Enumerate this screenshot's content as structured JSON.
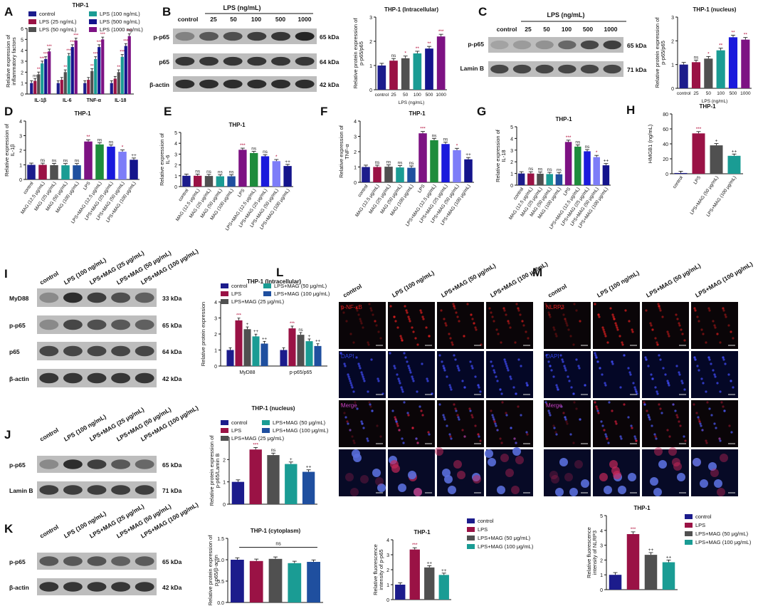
{
  "colors": {
    "control": "#1c1c8c",
    "wine": "#9a1245",
    "purple": "#7d1283",
    "gray": "#505050",
    "teal": "#1a9c94",
    "green": "#1e8c3c",
    "blue": "#1a1adc",
    "lightblue": "#7d7df8",
    "navy": "#14148c",
    "midblue": "#1f4f9f"
  },
  "panels": {
    "A": {
      "letter": "A",
      "title": "THP-1",
      "ylabel": "Relative expression of inflammatory factors",
      "legend": [
        "control",
        "LPS (25 ng/mL)",
        "LPS (50 ng/mL)",
        "LPS (100 ng/mL)",
        "LPS (500 ng/mL)",
        "LPS (1000 ng/mL)"
      ]
    },
    "B": {
      "letter": "B",
      "header": "LPS (ng/mL)",
      "lanes": [
        "control",
        "25",
        "50",
        "100",
        "500",
        "1000"
      ],
      "bands": [
        {
          "name": "p-p65",
          "kda": "65 kDa"
        },
        {
          "name": "p65",
          "kda": "64 kDa"
        },
        {
          "name": "β-actin",
          "kda": "42 kDa"
        }
      ]
    },
    "C": {
      "letter": "C",
      "header": "LPS (ng/mL)",
      "lanes": [
        "control",
        "25",
        "50",
        "100",
        "500",
        "1000"
      ],
      "bands": [
        {
          "name": "p-p65",
          "kda": "65 kDa"
        },
        {
          "name": "Lamin B",
          "kda": "71 kDa"
        }
      ]
    },
    "D": {
      "letter": "D"
    },
    "E": {
      "letter": "E"
    },
    "F": {
      "letter": "F"
    },
    "G": {
      "letter": "G"
    },
    "H": {
      "letter": "H"
    },
    "I": {
      "letter": "I",
      "lanes": [
        "control",
        "LPS (100 ng/mL)",
        "LPS+MAG (25 μg/mL)",
        "LPS+MAG (50 μg/mL)",
        "LPS+MAG (100 μg/mL)"
      ],
      "bands": [
        {
          "name": "MyD88",
          "kda": "33 kDa"
        },
        {
          "name": "p-p65",
          "kda": "65 kDa"
        },
        {
          "name": "p65",
          "kda": "64 kDa"
        },
        {
          "name": "β-actin",
          "kda": "42 kDa"
        }
      ]
    },
    "J": {
      "letter": "J",
      "lanes": [
        "control",
        "LPS (100 ng/mL)",
        "LPS+MAG (25 μg/mL)",
        "LPS+MAG (50 μg/mL)",
        "LPS+MAG (100 μg/mL)"
      ],
      "bands": [
        {
          "name": "p-p65",
          "kda": "65 kDa"
        },
        {
          "name": "Lamin B",
          "kda": "71 kDa"
        }
      ]
    },
    "K": {
      "letter": "K",
      "lanes": [
        "control",
        "LPS (100 ng/mL)",
        "LPS+MAG (25 μg/mL)",
        "LPS+MAG (50 μg/mL)",
        "LPS+MAG (100 μg/mL)"
      ],
      "bands": [
        {
          "name": "p-p65",
          "kda": "65 kDa"
        },
        {
          "name": "β-actin",
          "kda": "42 kDa"
        }
      ]
    },
    "L": {
      "letter": "L",
      "lanes": [
        "control",
        "LPS (100 ng/mL)",
        "LPS+MAG (50 μg/mL)",
        "LPS+MAG (100 μg/mL)"
      ],
      "rows": [
        "p-NF-κB",
        "DAPI",
        "Merge",
        ""
      ]
    },
    "M": {
      "letter": "M",
      "lanes": [
        "control",
        "LPS (100 ng/mL)",
        "LPS+MAG (50 μg/mL)",
        "LPS+MAG (100 μg/mL)"
      ],
      "rows": [
        "NLRP3",
        "DAPI",
        "Merge",
        ""
      ]
    }
  },
  "chart_data": [
    {
      "id": "A",
      "type": "bar",
      "title": "THP-1",
      "ylabel": "Relative expression of inflammatory factors",
      "categories": [
        "IL-1β",
        "IL-6",
        "TNF-α",
        "IL-18"
      ],
      "ylim": [
        0,
        6
      ],
      "yticks": [
        0,
        1,
        2,
        3,
        4,
        5,
        6
      ],
      "series": [
        {
          "name": "control",
          "color": "#1c1c8c",
          "values": [
            1,
            1,
            1,
            1
          ],
          "sig": [
            "",
            "",
            "",
            ""
          ]
        },
        {
          "name": "LPS (25 ng/mL)",
          "color": "#9a1245",
          "values": [
            1.2,
            1.3,
            1.3,
            1.4
          ],
          "sig": [
            "ns",
            "",
            "",
            ""
          ]
        },
        {
          "name": "LPS (50 ng/mL)",
          "color": "#505050",
          "values": [
            1.8,
            2.0,
            2.1,
            2.0
          ],
          "sig": [
            "**",
            "**",
            "**",
            "**"
          ]
        },
        {
          "name": "LPS (100 ng/mL)",
          "color": "#1a9c94",
          "values": [
            2.8,
            3.5,
            3.2,
            3.4
          ],
          "sig": [
            "***",
            "***",
            "***",
            "***"
          ]
        },
        {
          "name": "LPS (500 ng/mL)",
          "color": "#14148c",
          "values": [
            3.2,
            4.3,
            4.3,
            4.4
          ],
          "sig": [
            "***",
            "***",
            "***",
            "***"
          ]
        },
        {
          "name": "LPS (1000 ng/mL)",
          "color": "#7d1283",
          "values": [
            3.9,
            4.9,
            5.0,
            5.3
          ],
          "sig": [
            "***",
            "***",
            "***",
            "***"
          ]
        }
      ]
    },
    {
      "id": "B",
      "type": "bar",
      "title": "THP-1 (Intracellular)",
      "ylabel": "Relative protein expression of p-p65/p65",
      "xlabel": "LPS (ng/mL)",
      "categories": [
        "control",
        "25",
        "50",
        "100",
        "500",
        "1000"
      ],
      "ylim": [
        0,
        3
      ],
      "yticks": [
        0,
        1,
        2,
        3
      ],
      "values": [
        1.0,
        1.2,
        1.3,
        1.5,
        1.7,
        2.2
      ],
      "sig": [
        "",
        "ns",
        "*",
        "**",
        "**",
        "***"
      ],
      "colors": [
        "#1c1c8c",
        "#9a1245",
        "#505050",
        "#1a9c94",
        "#14148c",
        "#7d1283"
      ]
    },
    {
      "id": "C",
      "type": "bar",
      "title": "THP-1 (nucleus)",
      "ylabel": "Relative protein expression of p-p65/p65",
      "xlabel": "LPS (ng/mL)",
      "categories": [
        "control",
        "25",
        "50",
        "100",
        "500",
        "1000"
      ],
      "ylim": [
        0,
        3
      ],
      "yticks": [
        0,
        1,
        2,
        3
      ],
      "values": [
        1.0,
        1.1,
        1.25,
        1.6,
        2.15,
        2.05
      ],
      "sig": [
        "",
        "ns",
        "*",
        "**",
        "**",
        "**"
      ],
      "colors": [
        "#1c1c8c",
        "#9a1245",
        "#505050",
        "#1a9c94",
        "#1a1adc",
        "#7d1283"
      ]
    },
    {
      "id": "D",
      "type": "bar",
      "title": "THP-1",
      "ylabel": "Relative expression of IL-1β",
      "categories": [
        "control",
        "MAG (12.5 μg/mL)",
        "MAG (25 μg/mL)",
        "MAG (50 μg/mL)",
        "MAG (100 μg/mL)",
        "LPS",
        "LPS+MAG (12.5 μg/mL)",
        "LPS+MAG (25 μg/mL)",
        "LPS+MAG (50 μg/mL)",
        "LPS+MAG (100 μg/mL)"
      ],
      "ylim": [
        0,
        4
      ],
      "yticks": [
        0,
        1,
        2,
        3,
        4
      ],
      "values": [
        1.0,
        1.0,
        0.98,
        0.97,
        0.97,
        2.6,
        2.4,
        2.25,
        1.9,
        1.35
      ],
      "sig": [
        "",
        "ns",
        "ns",
        "ns",
        "ns",
        "**",
        "ns",
        "ns",
        "*",
        "++"
      ],
      "colors": [
        "#1c1c8c",
        "#9a1245",
        "#505050",
        "#1a9c94",
        "#1f4f9f",
        "#7d1283",
        "#1e8c3c",
        "#1a1adc",
        "#7d7df8",
        "#14148c"
      ]
    },
    {
      "id": "E",
      "type": "bar",
      "title": "THP-1",
      "ylabel": "Relative expression of IL-6",
      "categories": [
        "control",
        "MAG (12.5 μg/mL)",
        "MAG (25 μg/mL)",
        "MAG (50 μg/mL)",
        "MAG (100 μg/mL)",
        "LPS",
        "LPS+MAG (12.5 μg/mL)",
        "LPS+MAG (25 μg/mL)",
        "LPS+MAG (50 μg/mL)",
        "LPS+MAG (100 μg/mL)"
      ],
      "ylim": [
        0,
        5
      ],
      "yticks": [
        0,
        1,
        2,
        3,
        4,
        5
      ],
      "values": [
        1.0,
        1.0,
        0.98,
        0.95,
        0.95,
        3.4,
        3.1,
        2.8,
        2.35,
        1.9
      ],
      "sig": [
        "",
        "ns",
        "ns",
        "ns",
        "ns",
        "***",
        "ns",
        "ns",
        "*",
        "++"
      ],
      "colors": [
        "#1c1c8c",
        "#9a1245",
        "#505050",
        "#1a9c94",
        "#1f4f9f",
        "#7d1283",
        "#1e8c3c",
        "#1a1adc",
        "#7d7df8",
        "#14148c"
      ]
    },
    {
      "id": "F",
      "type": "bar",
      "title": "THP-1",
      "ylabel": "Relative expression of TNF-α",
      "categories": [
        "control",
        "MAG (12.5 μg/mL)",
        "MAG (25 μg/mL)",
        "MAG (50 μg/mL)",
        "MAG (100 μg/mL)",
        "LPS",
        "LPS+MAG (12.5 μg/mL)",
        "LPS+MAG (25 μg/mL)",
        "LPS+MAG (50 μg/mL)",
        "LPS+MAG (100 μg/mL)"
      ],
      "ylim": [
        0,
        4
      ],
      "yticks": [
        0,
        1,
        2,
        3,
        4
      ],
      "values": [
        1.0,
        1.0,
        1.02,
        0.97,
        0.95,
        3.2,
        2.75,
        2.5,
        2.1,
        1.5
      ],
      "sig": [
        "",
        "ns",
        "ns",
        "ns",
        "ns",
        "***",
        "ns",
        "ns",
        "*",
        "++"
      ],
      "colors": [
        "#1c1c8c",
        "#9a1245",
        "#505050",
        "#1a9c94",
        "#1f4f9f",
        "#7d1283",
        "#1e8c3c",
        "#1a1adc",
        "#7d7df8",
        "#14148c"
      ]
    },
    {
      "id": "G",
      "type": "bar",
      "title": "THP-1",
      "ylabel": "Relative expression of IL-18",
      "categories": [
        "control",
        "MAG (12.5 μg/mL)",
        "MAG (25 μg/mL)",
        "MAG (50 μg/mL)",
        "MAG (100 μg/mL)",
        "LPS",
        "LPS+MAG (12.5 μg/mL)",
        "LPS+MAG (25 μg/mL)",
        "LPS+MAG (50 μg/mL)",
        "LPS+MAG (100 μg/mL)"
      ],
      "ylim": [
        0,
        5
      ],
      "yticks": [
        0,
        1,
        2,
        3,
        4,
        5
      ],
      "values": [
        1.0,
        1.0,
        0.98,
        0.95,
        0.93,
        3.7,
        3.3,
        2.9,
        2.4,
        1.7
      ],
      "sig": [
        "",
        "ns",
        "ns",
        "ns",
        "ns",
        "***",
        "ns",
        "ns",
        "*",
        "++"
      ],
      "colors": [
        "#1c1c8c",
        "#9a1245",
        "#505050",
        "#1a9c94",
        "#1f4f9f",
        "#7d1283",
        "#1e8c3c",
        "#1a1adc",
        "#7d7df8",
        "#14148c"
      ]
    },
    {
      "id": "H",
      "type": "bar",
      "title": "THP-1",
      "ylabel": "HMGB1 (ng/mL)",
      "categories": [
        "control",
        "LPS",
        "LPS+MAG (50 μg/mL)",
        "LPS+MAG (100 μg/mL)"
      ],
      "ylim": [
        0,
        80
      ],
      "yticks": [
        0,
        20,
        40,
        60,
        80
      ],
      "values": [
        1,
        54,
        38,
        24
      ],
      "sig": [
        "",
        "***",
        "+",
        "++"
      ],
      "colors": [
        "#1c1c8c",
        "#9a1245",
        "#505050",
        "#1a9c94"
      ]
    },
    {
      "id": "I",
      "type": "bar",
      "title": "THP-1 (Intracellular)",
      "ylabel": "Relative protein expression",
      "categories": [
        "MyD88",
        "p-p65/p65"
      ],
      "ylim": [
        0,
        4
      ],
      "yticks": [
        0,
        1,
        2,
        3,
        4
      ],
      "legend": [
        "control",
        "LPS",
        "LPS+MAG (25 μg/mL)",
        "LPS+MAG (50 μg/mL)",
        "LPS+MAG (100 μg/mL)"
      ],
      "series": [
        {
          "name": "control",
          "color": "#1c1c8c",
          "values": [
            1.0,
            1.0
          ],
          "sig": [
            "",
            ""
          ]
        },
        {
          "name": "LPS",
          "color": "#9a1245",
          "values": [
            2.85,
            2.35
          ],
          "sig": [
            "***",
            "***"
          ]
        },
        {
          "name": "LPS+MAG (25 μg/mL)",
          "color": "#505050",
          "values": [
            2.3,
            1.95
          ],
          "sig": [
            "+",
            "ns"
          ]
        },
        {
          "name": "LPS+MAG (50 μg/mL)",
          "color": "#1a9c94",
          "values": [
            1.85,
            1.55
          ],
          "sig": [
            "++",
            "+"
          ]
        },
        {
          "name": "LPS+MAG (100 μg/mL)",
          "color": "#1f4f9f",
          "values": [
            1.4,
            1.25
          ],
          "sig": [
            "++",
            "++"
          ]
        }
      ]
    },
    {
      "id": "J",
      "type": "bar",
      "title": "THP-1 (nucleus)",
      "ylabel": "Relative protein expression of p-p65/Lamin B",
      "categories": [
        "control",
        "LPS",
        "LPS+MAG (25 μg/mL)",
        "LPS+MAG (50 μg/mL)",
        "LPS+MAG (100 μg/mL)"
      ],
      "legend": [
        "control",
        "LPS",
        "LPS+MAG (25 μg/mL)",
        "LPS+MAG (50 μg/mL)",
        "LPS+MAG (100 μg/mL)"
      ],
      "ylim": [
        0,
        3
      ],
      "yticks": [
        0,
        1,
        2,
        3
      ],
      "values": [
        1.0,
        2.45,
        2.2,
        1.8,
        1.45
      ],
      "sig": [
        "",
        "***",
        "ns",
        "+",
        "++"
      ],
      "colors": [
        "#1c1c8c",
        "#9a1245",
        "#505050",
        "#1a9c94",
        "#1f4f9f"
      ]
    },
    {
      "id": "K",
      "type": "bar",
      "title": "THP-1 (cytoplasm)",
      "ylabel": "Relative protein expression of p-p65/β-actin",
      "categories": [
        "control",
        "LPS",
        "LPS+MAG (25 μg/mL)",
        "LPS+MAG (50 μg/mL)",
        "LPS+MAG (100 μg/mL)"
      ],
      "ylim": [
        0,
        1.5
      ],
      "yticks": [
        0.0,
        0.5,
        1.0,
        1.5
      ],
      "bracket": "ns",
      "values": [
        1.0,
        0.97,
        1.02,
        0.92,
        0.95
      ],
      "sig": [
        "",
        "",
        "",
        "",
        ""
      ],
      "colors": [
        "#1c1c8c",
        "#9a1245",
        "#505050",
        "#1a9c94",
        "#1f4f9f"
      ]
    },
    {
      "id": "L",
      "type": "bar",
      "title": "THP-1",
      "ylabel": "Relative fluorescence intensity of p-p65",
      "categories": [
        "control",
        "LPS",
        "LPS+MAG (50 μg/mL)",
        "LPS+MAG (100 μg/mL)"
      ],
      "legend": [
        "control",
        "LPS",
        "LPS+MAG (50 μg/mL)",
        "LPS+MAG (100 μg/mL)"
      ],
      "ylim": [
        0,
        4
      ],
      "yticks": [
        0,
        1,
        2,
        3,
        4
      ],
      "values": [
        1.0,
        3.35,
        2.15,
        1.65
      ],
      "sig": [
        "",
        "***",
        "++",
        "++"
      ],
      "colors": [
        "#1c1c8c",
        "#9a1245",
        "#505050",
        "#1a9c94"
      ]
    },
    {
      "id": "M",
      "type": "bar",
      "title": "THP-1",
      "ylabel": "Relative fluorescence intensity of NLRP3",
      "categories": [
        "control",
        "LPS",
        "LPS+MAG (50 μg/mL)",
        "LPS+MAG (100 μg/mL)"
      ],
      "legend": [
        "control",
        "LPS",
        "LPS+MAG (50 μg/mL)",
        "LPS+MAG (100 μg/mL)"
      ],
      "ylim": [
        0,
        5
      ],
      "yticks": [
        0,
        1,
        2,
        3,
        4,
        5
      ],
      "values": [
        1.0,
        3.75,
        2.35,
        1.85
      ],
      "sig": [
        "",
        "***",
        "++",
        "++"
      ],
      "colors": [
        "#1c1c8c",
        "#9a1245",
        "#505050",
        "#1a9c94"
      ]
    }
  ]
}
